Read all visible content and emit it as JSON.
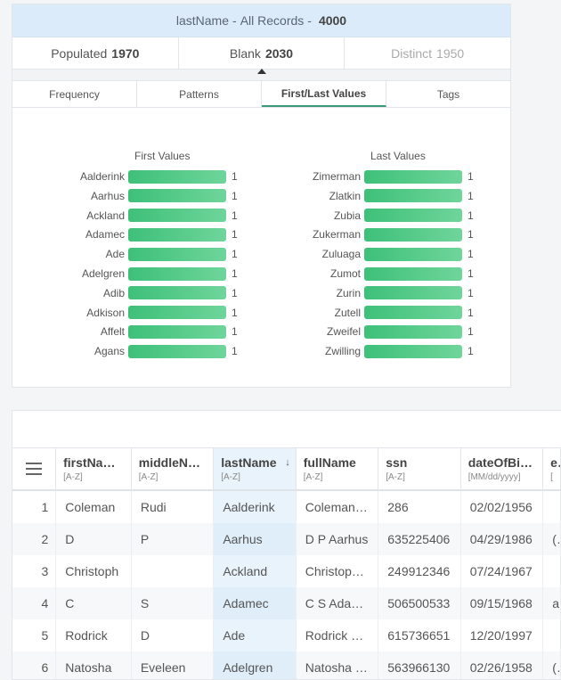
{
  "panel": {
    "header": {
      "field": "lastName",
      "sep": "-",
      "label": "All Records",
      "sep2": "-",
      "total": "4000"
    },
    "stats": [
      {
        "label": "Populated",
        "value": "1970"
      },
      {
        "label": "Blank",
        "value": "2030"
      },
      {
        "label": "Distinct",
        "value": "1950"
      }
    ],
    "tabs": [
      "Frequency",
      "Patterns",
      "First/Last Values",
      "Tags"
    ],
    "first_title": "First Values",
    "last_title": "Last Values",
    "first_values": [
      {
        "name": "Aalderink",
        "count": "1"
      },
      {
        "name": "Aarhus",
        "count": "1"
      },
      {
        "name": "Ackland",
        "count": "1"
      },
      {
        "name": "Adamec",
        "count": "1"
      },
      {
        "name": "Ade",
        "count": "1"
      },
      {
        "name": "Adelgren",
        "count": "1"
      },
      {
        "name": "Adib",
        "count": "1"
      },
      {
        "name": "Adkison",
        "count": "1"
      },
      {
        "name": "Affelt",
        "count": "1"
      },
      {
        "name": "Agans",
        "count": "1"
      }
    ],
    "last_values": [
      {
        "name": "Zimerman",
        "count": "1"
      },
      {
        "name": "Zlatkin",
        "count": "1"
      },
      {
        "name": "Zubia",
        "count": "1"
      },
      {
        "name": "Zukerman",
        "count": "1"
      },
      {
        "name": "Zuluaga",
        "count": "1"
      },
      {
        "name": "Zumot",
        "count": "1"
      },
      {
        "name": "Zurin",
        "count": "1"
      },
      {
        "name": "Zutell",
        "count": "1"
      },
      {
        "name": "Zweifel",
        "count": "1"
      },
      {
        "name": "Zwilling",
        "count": "1"
      }
    ]
  },
  "grid": {
    "columns": [
      {
        "name": "firstNa…",
        "type": "[A-Z]"
      },
      {
        "name": "middleN…",
        "type": "[A-Z]"
      },
      {
        "name": "lastName",
        "type": "[A-Z]",
        "sort": "↓"
      },
      {
        "name": "fullName",
        "type": "[A-Z]"
      },
      {
        "name": "ssn",
        "type": "[A-Z]"
      },
      {
        "name": "dateOfBi…",
        "type": "[MM/dd/yyyy]"
      },
      {
        "name": "e",
        "type": "["
      }
    ],
    "rows": [
      [
        "1",
        "Coleman",
        "Rudi",
        "Aalderink",
        "Coleman …",
        "286",
        "02/02/1956",
        ""
      ],
      [
        "2",
        "D",
        "P",
        "Aarhus",
        "D P Aarhus",
        "635225406",
        "04/29/1986",
        "("
      ],
      [
        "3",
        "Christoph",
        "",
        "Ackland",
        "Christoph…",
        "249912346",
        "07/24/1967",
        ""
      ],
      [
        "4",
        "C",
        "S",
        "Adamec",
        "C S Adam…",
        "506500533",
        "09/15/1968",
        "a"
      ],
      [
        "5",
        "Rodrick",
        "D",
        "Ade",
        "Rodrick D…",
        "615736651",
        "12/20/1997",
        ""
      ],
      [
        "6",
        "Natosha",
        "Eveleen",
        "Adelgren",
        "Natosha …",
        "563966130",
        "02/26/1958",
        "("
      ]
    ]
  }
}
